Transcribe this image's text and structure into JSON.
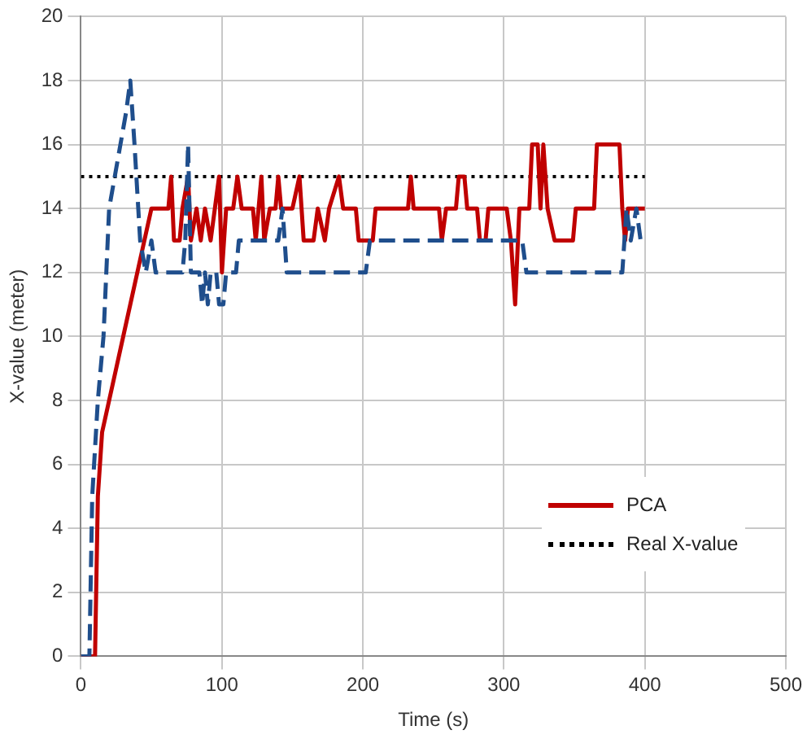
{
  "chart_data": {
    "type": "line",
    "xlabel": "Time (s)",
    "ylabel": "X-value (meter)",
    "xlim": [
      0,
      500
    ],
    "xticks": [
      0,
      100,
      200,
      300,
      400,
      500
    ],
    "ylim": [
      0,
      20
    ],
    "yticks": [
      0,
      2,
      4,
      6,
      8,
      10,
      12,
      14,
      16,
      18,
      20
    ],
    "grid": true,
    "legend": "bottom right",
    "marker": "none",
    "series": [
      {
        "color": "#1f4e8c",
        "line_style": "dashed",
        "x": [
          0,
          6,
          8,
          12,
          16,
          20,
          24,
          28,
          32,
          35,
          38,
          42,
          46,
          50,
          53,
          72,
          74,
          76,
          78,
          84,
          86,
          88,
          90,
          92,
          96,
          98,
          101,
          103,
          110,
          112,
          140,
          143,
          146,
          202,
          205,
          313,
          316,
          384,
          387,
          390,
          394,
          397,
          400
        ],
        "values": [
          0,
          0,
          5,
          8,
          10,
          14,
          15,
          16,
          17,
          18,
          16,
          13,
          12,
          13,
          12,
          12,
          13,
          16,
          12,
          12,
          11,
          12,
          11,
          12,
          12,
          11,
          11,
          12,
          12,
          13,
          13,
          14,
          12,
          12,
          13,
          13,
          12,
          12,
          14,
          13,
          14,
          13,
          13
        ]
      },
      {
        "name": "PCA",
        "color": "#c00000",
        "line_style": "solid",
        "x": [
          0,
          10,
          12,
          15,
          20,
          25,
          30,
          35,
          40,
          45,
          50,
          55,
          62,
          64,
          66,
          70,
          72,
          76,
          78,
          82,
          85,
          88,
          92,
          95,
          98,
          100,
          103,
          108,
          111,
          114,
          122,
          124,
          128,
          130,
          134,
          138,
          140,
          142,
          150,
          155,
          158,
          165,
          168,
          173,
          176,
          183,
          186,
          195,
          197,
          207,
          209,
          232,
          234,
          236,
          254,
          256,
          259,
          266,
          268,
          272,
          274,
          281,
          283,
          287,
          289,
          302,
          305,
          308,
          311,
          318,
          320,
          324,
          326,
          328,
          331,
          336,
          349,
          351,
          364,
          366,
          382,
          384,
          386,
          388,
          400
        ],
        "values": [
          0,
          0,
          5,
          7,
          8,
          9,
          10,
          11,
          12,
          13,
          14,
          14,
          14,
          15,
          13,
          13,
          14,
          15,
          13,
          14,
          13,
          14,
          13,
          14,
          15,
          12,
          14,
          14,
          15,
          14,
          14,
          13,
          15,
          13,
          14,
          14,
          15,
          14,
          14,
          15,
          13,
          13,
          14,
          13,
          14,
          15,
          14,
          14,
          13,
          13,
          14,
          14,
          15,
          14,
          14,
          13,
          14,
          14,
          15,
          15,
          14,
          14,
          13,
          13,
          14,
          14,
          13,
          11,
          14,
          14,
          16,
          16,
          14,
          16,
          14,
          13,
          13,
          14,
          14,
          16,
          16,
          14,
          13,
          14,
          14
        ]
      },
      {
        "name": "Real X-value",
        "color": "#000000",
        "line_style": "dotted",
        "x": [
          0,
          400
        ],
        "values": [
          15,
          15
        ]
      }
    ]
  }
}
